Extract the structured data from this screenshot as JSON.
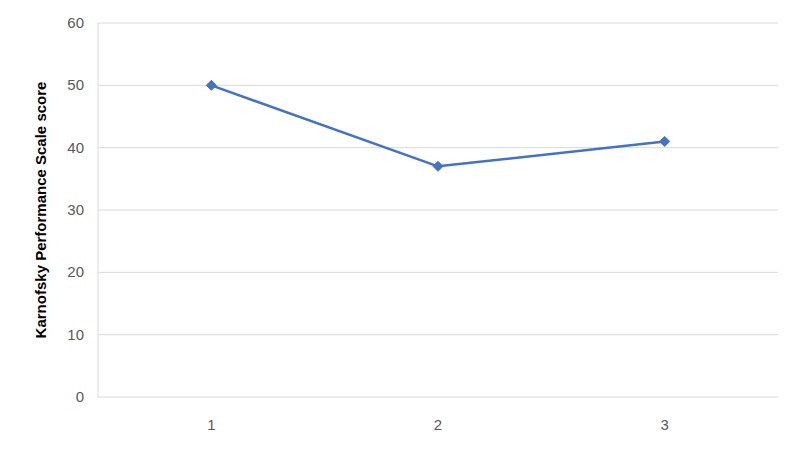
{
  "chart_data": {
    "type": "line",
    "y_label": "Karnofsky Performance Scale score",
    "categories": [
      "1",
      "2",
      "3"
    ],
    "values": [
      50,
      37,
      41
    ],
    "color": "#4472c4",
    "marker": "diamond",
    "ylim": [
      0,
      60
    ],
    "yticks": [
      0,
      10,
      20,
      30,
      40,
      50,
      60
    ],
    "grid": true
  }
}
